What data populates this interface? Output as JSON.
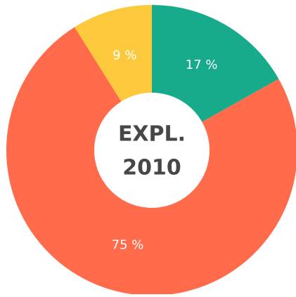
{
  "chart_data": {
    "type": "donut",
    "categories": [
      null,
      null,
      null
    ],
    "values": [
      17,
      75,
      9
    ],
    "value_labels": [
      "17 %",
      "75 %",
      "9 %"
    ],
    "colors": [
      "#17aa8b",
      "#ff6b4b",
      "#fdc93c"
    ],
    "center_text": [
      "EXPL.",
      "2010"
    ]
  }
}
